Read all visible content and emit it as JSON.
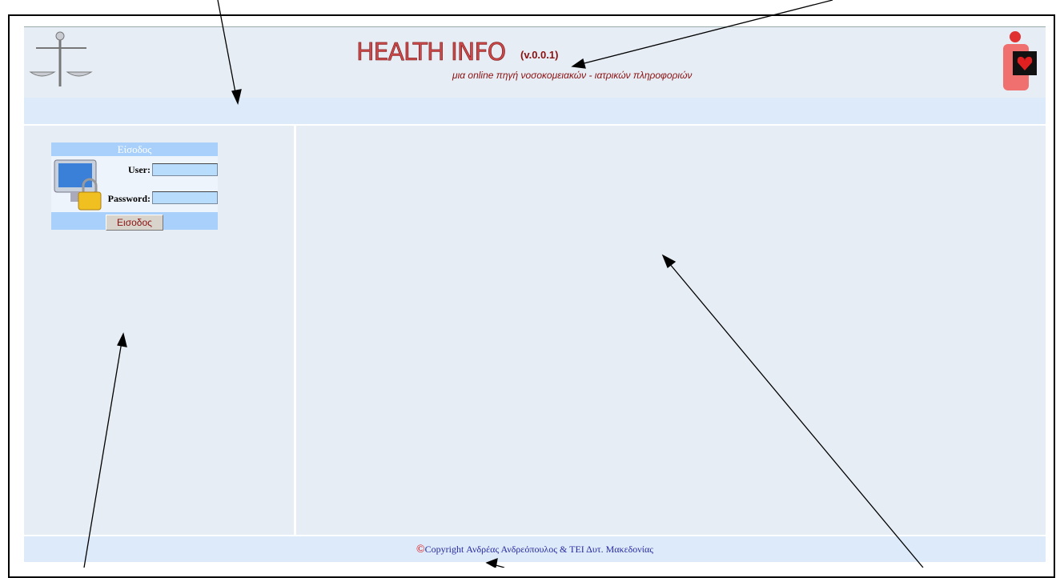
{
  "header": {
    "title": "HEALTH INFO",
    "version": "(v.0.0.1)",
    "subtitle": "μια online πηγή νοσοκομειακών - ιατρικών πληροφοριών"
  },
  "login": {
    "title": "Είσοδος",
    "user_label": "User:",
    "password_label": "Password:",
    "button": "Εισοδος"
  },
  "footer": {
    "symbol": "©",
    "text": "Copyright Ανδρέας Ανδρεόπουλος & ΤΕΙ Δυτ. Μακεδονίας"
  }
}
